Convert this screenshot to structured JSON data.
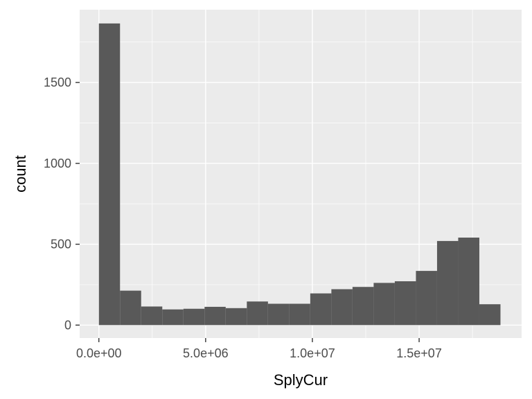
{
  "chart_data": {
    "type": "bar",
    "subtype": "histogram",
    "xlabel": "SplyCur",
    "ylabel": "count",
    "xlim": [
      -900000,
      19800000
    ],
    "ylim": [
      -80,
      1950
    ],
    "x_ticks": [
      {
        "value": 0,
        "label": "0.0e+00"
      },
      {
        "value": 5000000,
        "label": "5.0e+06"
      },
      {
        "value": 10000000,
        "label": "1.0e+07"
      },
      {
        "value": 15000000,
        "label": "1.5e+07"
      }
    ],
    "y_ticks": [
      {
        "value": 0,
        "label": "0"
      },
      {
        "value": 500,
        "label": "500"
      },
      {
        "value": 1000,
        "label": "1000"
      },
      {
        "value": 1500,
        "label": "1500"
      }
    ],
    "grid": true,
    "colors": {
      "panel": "#EBEBEB",
      "bar": "#595959",
      "grid": "#FFFFFF"
    },
    "bins": [
      {
        "x0": 0,
        "x1": 990000,
        "count": 1865
      },
      {
        "x0": 990000,
        "x1": 1980000,
        "count": 213
      },
      {
        "x0": 1980000,
        "x1": 2970000,
        "count": 115
      },
      {
        "x0": 2970000,
        "x1": 3960000,
        "count": 97
      },
      {
        "x0": 3960000,
        "x1": 4950000,
        "count": 101
      },
      {
        "x0": 4950000,
        "x1": 5940000,
        "count": 113
      },
      {
        "x0": 5940000,
        "x1": 6930000,
        "count": 105
      },
      {
        "x0": 6930000,
        "x1": 7920000,
        "count": 146
      },
      {
        "x0": 7920000,
        "x1": 8910000,
        "count": 132
      },
      {
        "x0": 8910000,
        "x1": 9900000,
        "count": 132
      },
      {
        "x0": 9900000,
        "x1": 10890000,
        "count": 196
      },
      {
        "x0": 10890000,
        "x1": 11880000,
        "count": 222
      },
      {
        "x0": 11880000,
        "x1": 12870000,
        "count": 236
      },
      {
        "x0": 12870000,
        "x1": 13860000,
        "count": 261
      },
      {
        "x0": 13860000,
        "x1": 14850000,
        "count": 271
      },
      {
        "x0": 14850000,
        "x1": 15840000,
        "count": 335
      },
      {
        "x0": 15840000,
        "x1": 16830000,
        "count": 520
      },
      {
        "x0": 16830000,
        "x1": 17820000,
        "count": 541
      },
      {
        "x0": 17820000,
        "x1": 18810000,
        "count": 129
      }
    ]
  }
}
